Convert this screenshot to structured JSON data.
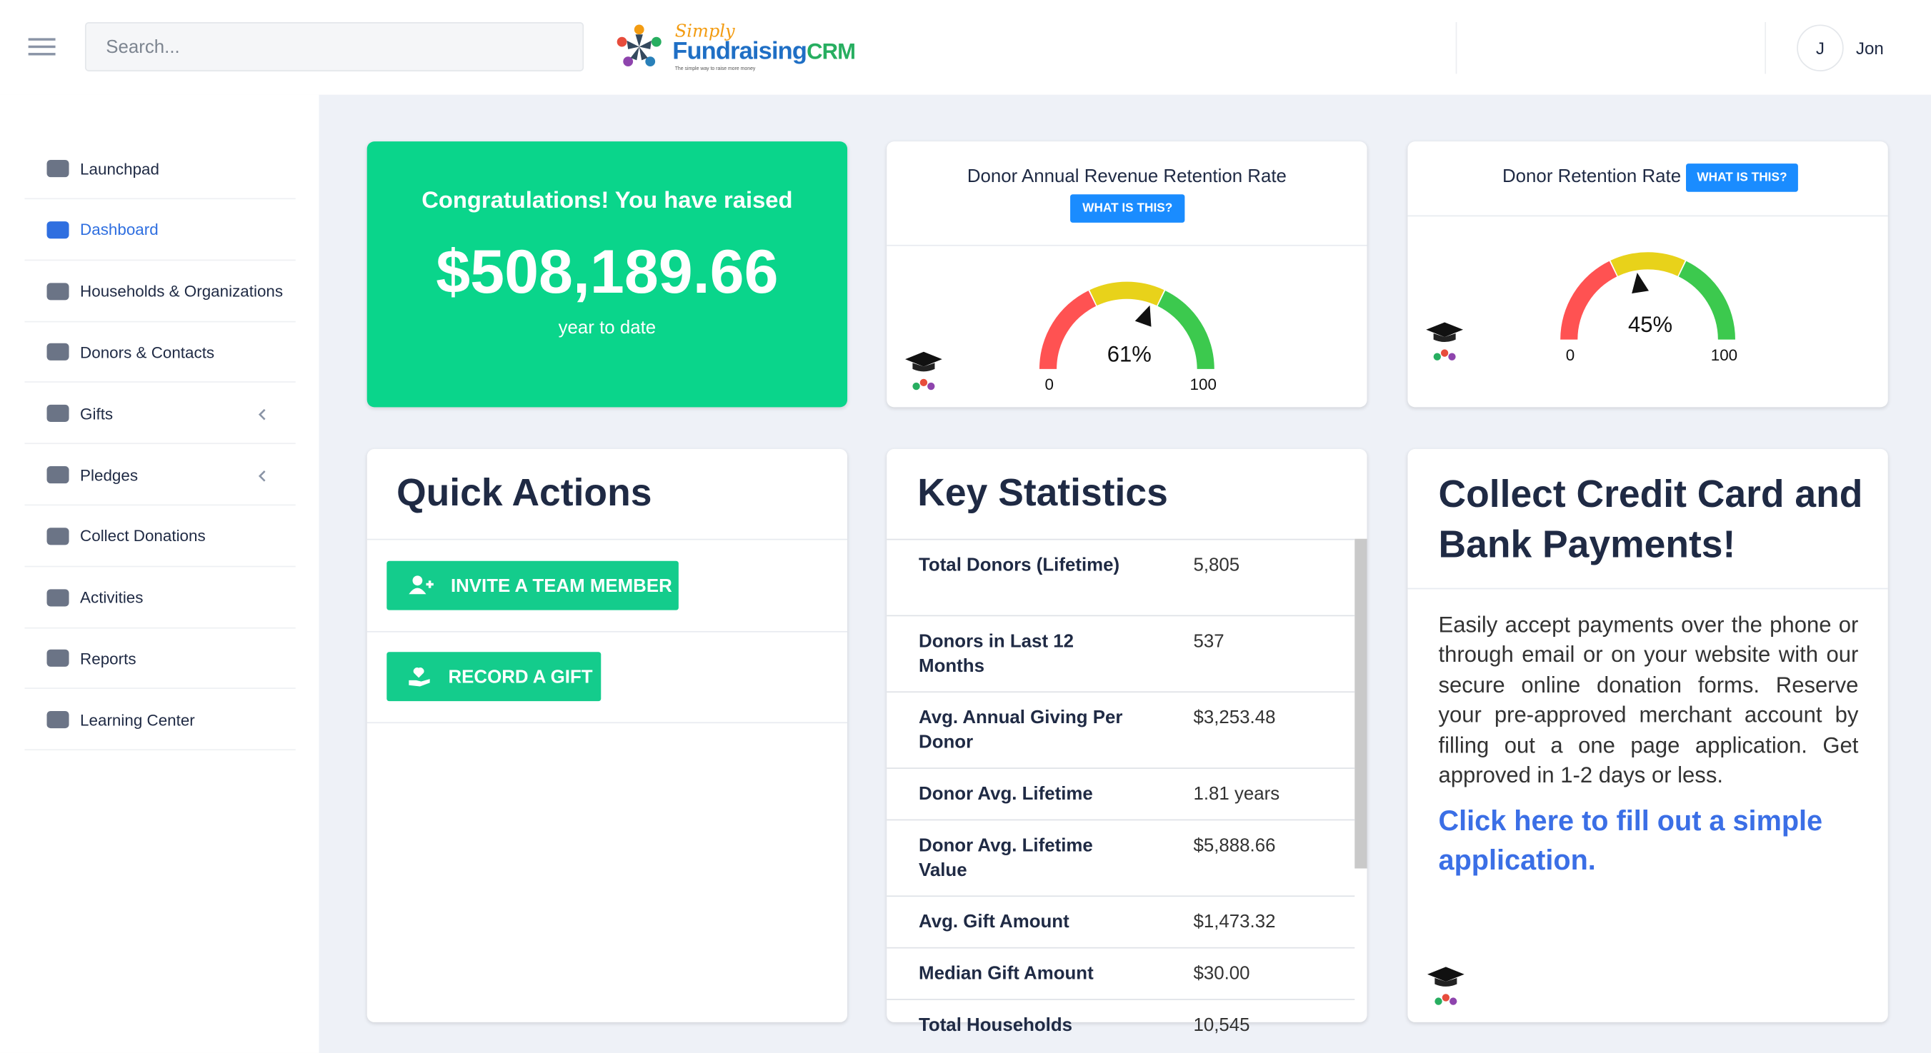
{
  "header": {
    "search_placeholder": "Search...",
    "logo": {
      "script": "Simply",
      "brand": "Fundraising",
      "suffix": "CRM",
      "tagline": "The simple way to raise more money"
    },
    "user": {
      "initial": "J",
      "name": "Jon"
    }
  },
  "sidebar": {
    "items": [
      "Launchpad",
      "Dashboard",
      "Households & Organizations",
      "Donors & Contacts",
      "Gifts",
      "Pledges",
      "Collect Donations",
      "Activities",
      "Reports",
      "Learning Center"
    ]
  },
  "congrats": {
    "title": "Congratulations! You have raised",
    "amount": "$508,189.66",
    "subtitle": "year to date"
  },
  "gauges": [
    {
      "title": "Donor Annual Revenue Retention Rate",
      "button": "WHAT IS THIS?",
      "value": 61,
      "value_label": "61%",
      "min": 0,
      "max": 100
    },
    {
      "title": "Donor Retention Rate",
      "button": "WHAT IS THIS?",
      "value": 45,
      "value_label": "45%",
      "min": 0,
      "max": 100
    }
  ],
  "quick_actions": {
    "title": "Quick Actions",
    "buttons": [
      "INVITE A TEAM MEMBER",
      "RECORD A GIFT"
    ]
  },
  "key_statistics": {
    "title": "Key Statistics",
    "rows": [
      [
        "Total Donors (Lifetime)",
        "5,805"
      ],
      [
        "Donors in Last 12 Months",
        "537"
      ],
      [
        "Avg. Annual Giving Per Donor",
        "$3,253.48"
      ],
      [
        "Donor Avg. Lifetime",
        "1.81 years"
      ],
      [
        "Donor Avg. Lifetime Value",
        "$5,888.66"
      ],
      [
        "Avg. Gift Amount",
        "$1,473.32"
      ],
      [
        "Median Gift Amount",
        "$30.00"
      ],
      [
        "Total Households",
        "10,545"
      ]
    ]
  },
  "promo": {
    "title": "Collect Credit Card and Bank Payments!",
    "body": "Easily accept payments over the phone or through email or on your website with our secure online donation forms. Reserve your pre-approved merchant account by filling out a one page application. Get approved in 1-2 days or less.",
    "link": "Click here to fill out a simple application."
  }
}
